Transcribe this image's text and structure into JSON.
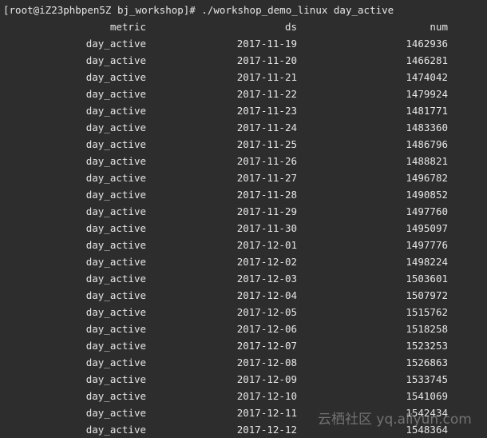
{
  "terminal": {
    "command_line": "[root@iZ23phbpen5Z bj_workshop]# ./workshop_demo_linux day_active",
    "columns": [
      "metric",
      "ds",
      "num"
    ],
    "rows": [
      [
        "day_active",
        "2017-11-19",
        "1462936"
      ],
      [
        "day_active",
        "2017-11-20",
        "1466281"
      ],
      [
        "day_active",
        "2017-11-21",
        "1474042"
      ],
      [
        "day_active",
        "2017-11-22",
        "1479924"
      ],
      [
        "day_active",
        "2017-11-23",
        "1481771"
      ],
      [
        "day_active",
        "2017-11-24",
        "1483360"
      ],
      [
        "day_active",
        "2017-11-25",
        "1486796"
      ],
      [
        "day_active",
        "2017-11-26",
        "1488821"
      ],
      [
        "day_active",
        "2017-11-27",
        "1496782"
      ],
      [
        "day_active",
        "2017-11-28",
        "1490852"
      ],
      [
        "day_active",
        "2017-11-29",
        "1497760"
      ],
      [
        "day_active",
        "2017-11-30",
        "1495097"
      ],
      [
        "day_active",
        "2017-12-01",
        "1497776"
      ],
      [
        "day_active",
        "2017-12-02",
        "1498224"
      ],
      [
        "day_active",
        "2017-12-03",
        "1503601"
      ],
      [
        "day_active",
        "2017-12-04",
        "1507972"
      ],
      [
        "day_active",
        "2017-12-05",
        "1515762"
      ],
      [
        "day_active",
        "2017-12-06",
        "1518258"
      ],
      [
        "day_active",
        "2017-12-07",
        "1523253"
      ],
      [
        "day_active",
        "2017-12-08",
        "1526863"
      ],
      [
        "day_active",
        "2017-12-09",
        "1533745"
      ],
      [
        "day_active",
        "2017-12-10",
        "1541069"
      ],
      [
        "day_active",
        "2017-12-11",
        "1542434"
      ],
      [
        "day_active",
        "2017-12-12",
        "1548364"
      ]
    ]
  },
  "watermark": "云栖社区 yq.aliyun.com",
  "colors": {
    "background": "#2d2d2d",
    "text": "#e6e6e6"
  }
}
